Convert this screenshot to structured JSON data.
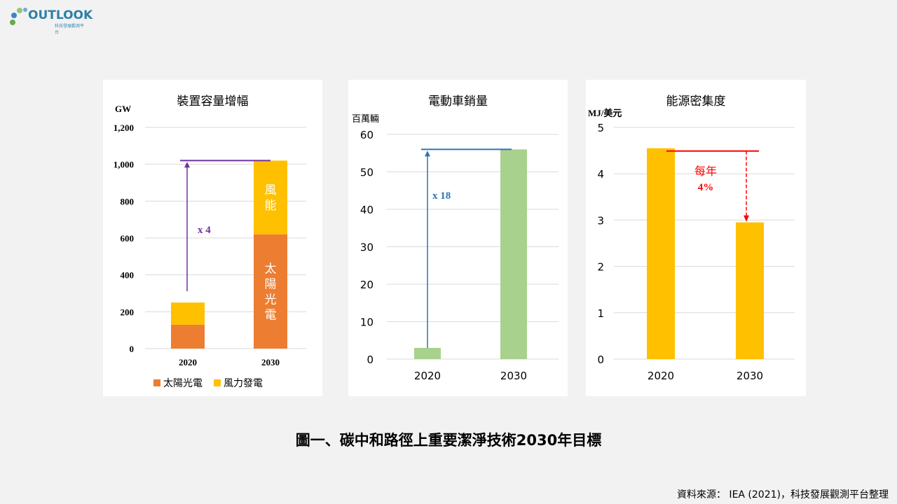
{
  "logo": {
    "text": "OUTLOOK",
    "subtext": "科技發展觀測平台"
  },
  "caption": "圖一、碳中和路徑上重要潔淨技術2030年目標",
  "source": "資料來源： IEA (2021)，科技發展觀測平台整理",
  "colors": {
    "solar": "#ed7d31",
    "wind": "#ffc000",
    "ev": "#a9d18e",
    "energy": "#ffc000",
    "purple": "#7030a0",
    "blue": "#2e75b6",
    "red": "#ff0000",
    "grid": "#d9d9d9"
  },
  "chart_data": [
    {
      "type": "bar",
      "stacked": true,
      "title": "裝置容量增幅",
      "ylabel": "GW",
      "categories": [
        "2020",
        "2030"
      ],
      "series": [
        {
          "name": "太陽光電",
          "values": [
            130,
            620
          ],
          "color": "#ed7d31"
        },
        {
          "name": "風力發電",
          "values": [
            120,
            400
          ],
          "color": "#ffc000"
        }
      ],
      "segment_labels": [
        "風能",
        "太陽光電"
      ],
      "ylim": [
        0,
        1200
      ],
      "yticks": [
        "0",
        "200",
        "400",
        "600",
        "800",
        "1,000",
        "1,200"
      ],
      "annotation": "x 4",
      "legend": "bottom"
    },
    {
      "type": "bar",
      "title": "電動車銷量",
      "ylabel": "百萬輛",
      "categories": [
        "2020",
        "2030"
      ],
      "values": [
        3,
        56
      ],
      "ylim": [
        0,
        60
      ],
      "yticks": [
        "0",
        "10",
        "20",
        "30",
        "40",
        "50",
        "60"
      ],
      "annotation": "x 18"
    },
    {
      "type": "bar",
      "title": "能源密集度",
      "ylabel": "MJ/美元",
      "categories": [
        "2020",
        "2030"
      ],
      "values": [
        4.55,
        2.95
      ],
      "ylim": [
        0,
        5
      ],
      "yticks": [
        "0",
        "1",
        "2",
        "3",
        "4",
        "5"
      ],
      "annotation_line1": "每年",
      "annotation_line2": "4%"
    }
  ]
}
